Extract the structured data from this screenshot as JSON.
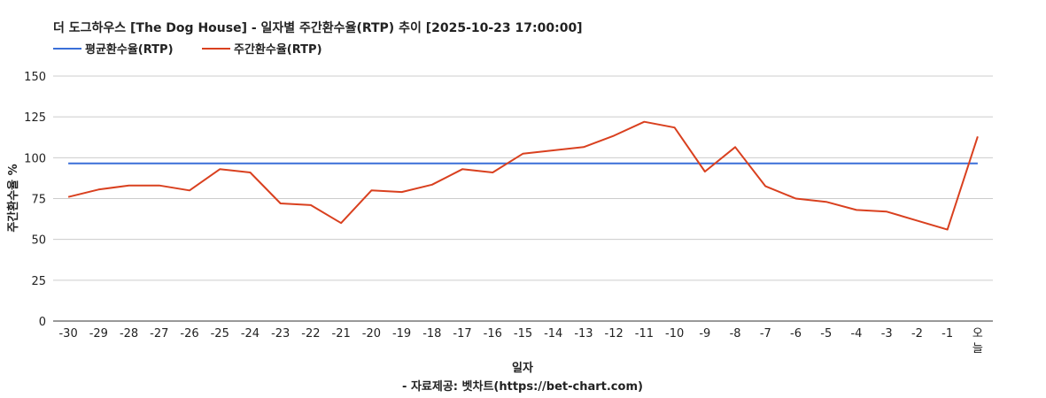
{
  "chart_data": {
    "type": "line",
    "title": "더 도그하우스 [The Dog House] - 일자별 주간환수율(RTP) 추이 [2025-10-23 17:00:00]",
    "xlabel": "일자",
    "ylabel": "주간환수율 %",
    "source": "- 자료제공: 벳차트(https://bet-chart.com)",
    "ylim": [
      0,
      150
    ],
    "yticks": [
      "0",
      "25",
      "50",
      "75",
      "100",
      "125",
      "150"
    ],
    "grid": true,
    "legend_position": "top-left",
    "categories": [
      "-30",
      "-29",
      "-28",
      "-27",
      "-26",
      "-25",
      "-24",
      "-23",
      "-22",
      "-21",
      "-20",
      "-19",
      "-18",
      "-17",
      "-16",
      "-15",
      "-14",
      "-13",
      "-12",
      "-11",
      "-10",
      "-9",
      "-8",
      "-7",
      "-6",
      "-5",
      "-4",
      "-3",
      "-2",
      "-1",
      "오늘"
    ],
    "series": [
      {
        "name": "평균환수율(RTP)",
        "color": "#3a6fd8",
        "values": [
          96.5,
          96.5,
          96.5,
          96.5,
          96.5,
          96.5,
          96.5,
          96.5,
          96.5,
          96.5,
          96.5,
          96.5,
          96.5,
          96.5,
          96.5,
          96.5,
          96.5,
          96.5,
          96.5,
          96.5,
          96.5,
          96.5,
          96.5,
          96.5,
          96.5,
          96.5,
          96.5,
          96.5,
          96.5,
          96.5,
          96.5
        ]
      },
      {
        "name": "주간환수율(RTP)",
        "color": "#d9401f",
        "values": [
          76,
          80.5,
          83,
          83,
          80,
          93,
          91,
          72,
          71,
          60,
          80,
          79,
          83.5,
          93,
          91,
          102.5,
          104.5,
          106.5,
          113.5,
          122,
          118.5,
          91.5,
          106.5,
          82.5,
          75,
          73,
          68,
          67,
          61.5,
          56,
          113
        ]
      }
    ]
  }
}
